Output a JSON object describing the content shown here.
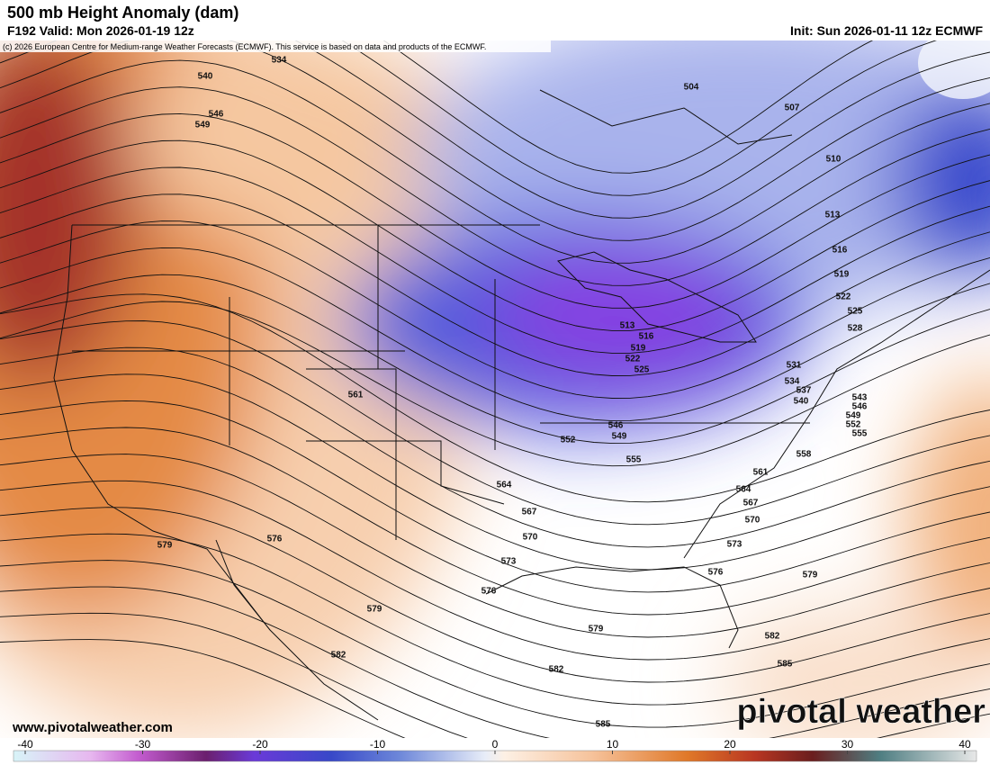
{
  "header": {
    "title": "500 mb Height Anomaly (dam)",
    "valid": "F192 Valid: Mon 2026-01-19 12z",
    "init": "Init: Sun 2026-01-11 12z ECMWF",
    "copyright": "(c) 2026 European Centre for Medium-range Weather Forecasts (ECMWF). This service is based on data and products of the ECMWF."
  },
  "contour_labels": [
    534,
    540,
    546,
    549,
    504,
    507,
    510,
    513,
    516,
    519,
    522,
    525,
    528,
    531,
    534,
    537,
    540,
    543,
    546,
    549,
    552,
    555,
    513,
    516,
    519,
    522,
    525,
    546,
    549,
    552,
    555,
    558,
    561,
    561,
    564,
    564,
    567,
    567,
    570,
    570,
    573,
    573,
    576,
    576,
    576,
    579,
    579,
    579,
    579,
    582,
    582,
    582,
    585,
    585
  ],
  "colorbar": {
    "ticks": [
      -40,
      -30,
      -20,
      -10,
      0,
      10,
      20,
      30,
      40
    ]
  },
  "footer": {
    "website": "www.pivotalweather.com",
    "logo": "pivotal weather"
  }
}
